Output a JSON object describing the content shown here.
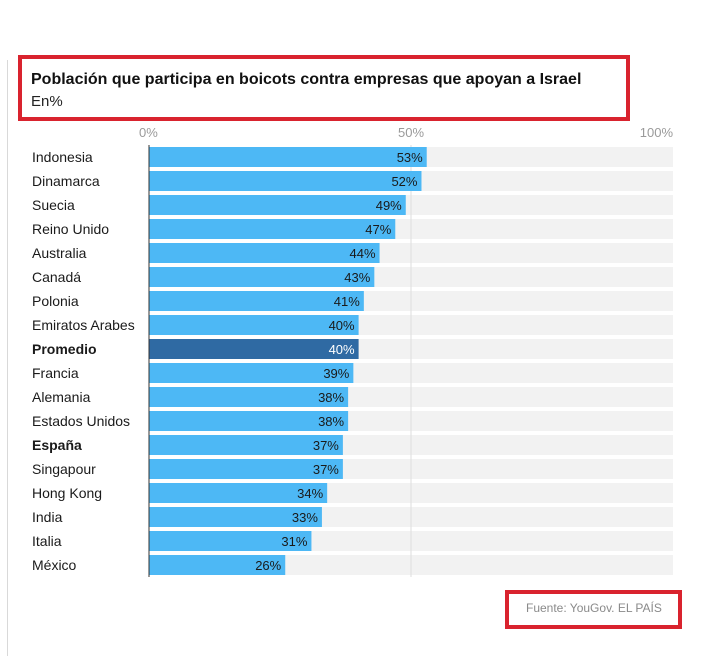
{
  "chart_data": {
    "type": "bar",
    "orientation": "horizontal",
    "title": "Población que participa en boicots contra empresas que apoyan a Israel",
    "subtitle": "En%",
    "xlim": [
      0,
      100
    ],
    "x_ticks": [
      "0%",
      "50%",
      "100%"
    ],
    "x_tick_values": [
      0,
      50,
      100
    ],
    "categories": [
      "Indonesia",
      "Dinamarca",
      "Suecia",
      "Reino Unido",
      "Australia",
      "Canadá",
      "Polonia",
      "Emiratos Arabes",
      "Promedio",
      "Francia",
      "Alemania",
      "Estados Unidos",
      "España",
      "Singapour",
      "Hong Kong",
      "India",
      "Italia",
      "México"
    ],
    "values": [
      53,
      52,
      49,
      47,
      44,
      43,
      41,
      40,
      40,
      39,
      38,
      38,
      37,
      37,
      34,
      33,
      31,
      26
    ],
    "value_labels": [
      "53%",
      "52%",
      "49%",
      "47%",
      "44%",
      "43%",
      "41%",
      "40%",
      "40%",
      "39%",
      "38%",
      "38%",
      "37%",
      "37%",
      "34%",
      "33%",
      "31%",
      "26%"
    ],
    "bold_categories": [
      "Promedio",
      "España"
    ],
    "highlight_category": "Promedio",
    "colors": {
      "bar": "#4db8f5",
      "highlight_bar": "#2f6aa3",
      "track": "#f2f2f2",
      "axis_text": "#9a9a9a"
    },
    "source": "Fuente: YouGov. EL PAÍS"
  }
}
